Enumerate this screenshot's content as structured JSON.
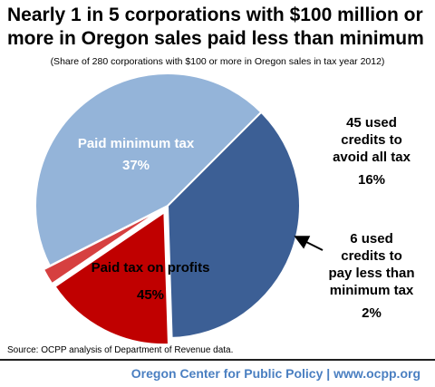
{
  "title_lines": [
    "Nearly 1 in 5 corporations with $100 million or",
    "more in Oregon sales paid less than minimum"
  ],
  "subtitle": "(Share of 280 corporations with $100 or more in Oregon sales in tax year 2012)",
  "source": "Source: OCPP analysis of Department of Revenue data.",
  "footer": {
    "org": "Oregon Center for Public Policy",
    "separator": "|",
    "site": "www.ocpp.org"
  },
  "chart_data": {
    "type": "pie",
    "slices": [
      {
        "label_lines": [
          "Paid minimum tax"
        ],
        "value_label": "37%",
        "value": 37,
        "color": "#3c5f95"
      },
      {
        "label_lines": [
          "45 used",
          "credits to",
          "avoid all tax"
        ],
        "value_label": "16%",
        "value": 16,
        "color": "#c00000"
      },
      {
        "label_lines": [
          "6 used",
          "credits to",
          "pay less than",
          "minimum tax"
        ],
        "value_label": "2%",
        "value": 2,
        "color": "#d64040"
      },
      {
        "label_lines": [
          "Paid tax on profits"
        ],
        "value_label": "45%",
        "value": 45,
        "color": "#94b4d9"
      }
    ],
    "colors": {
      "label_light": "#ffffff",
      "label_dark": "#000000",
      "arrow": "#000000"
    }
  }
}
